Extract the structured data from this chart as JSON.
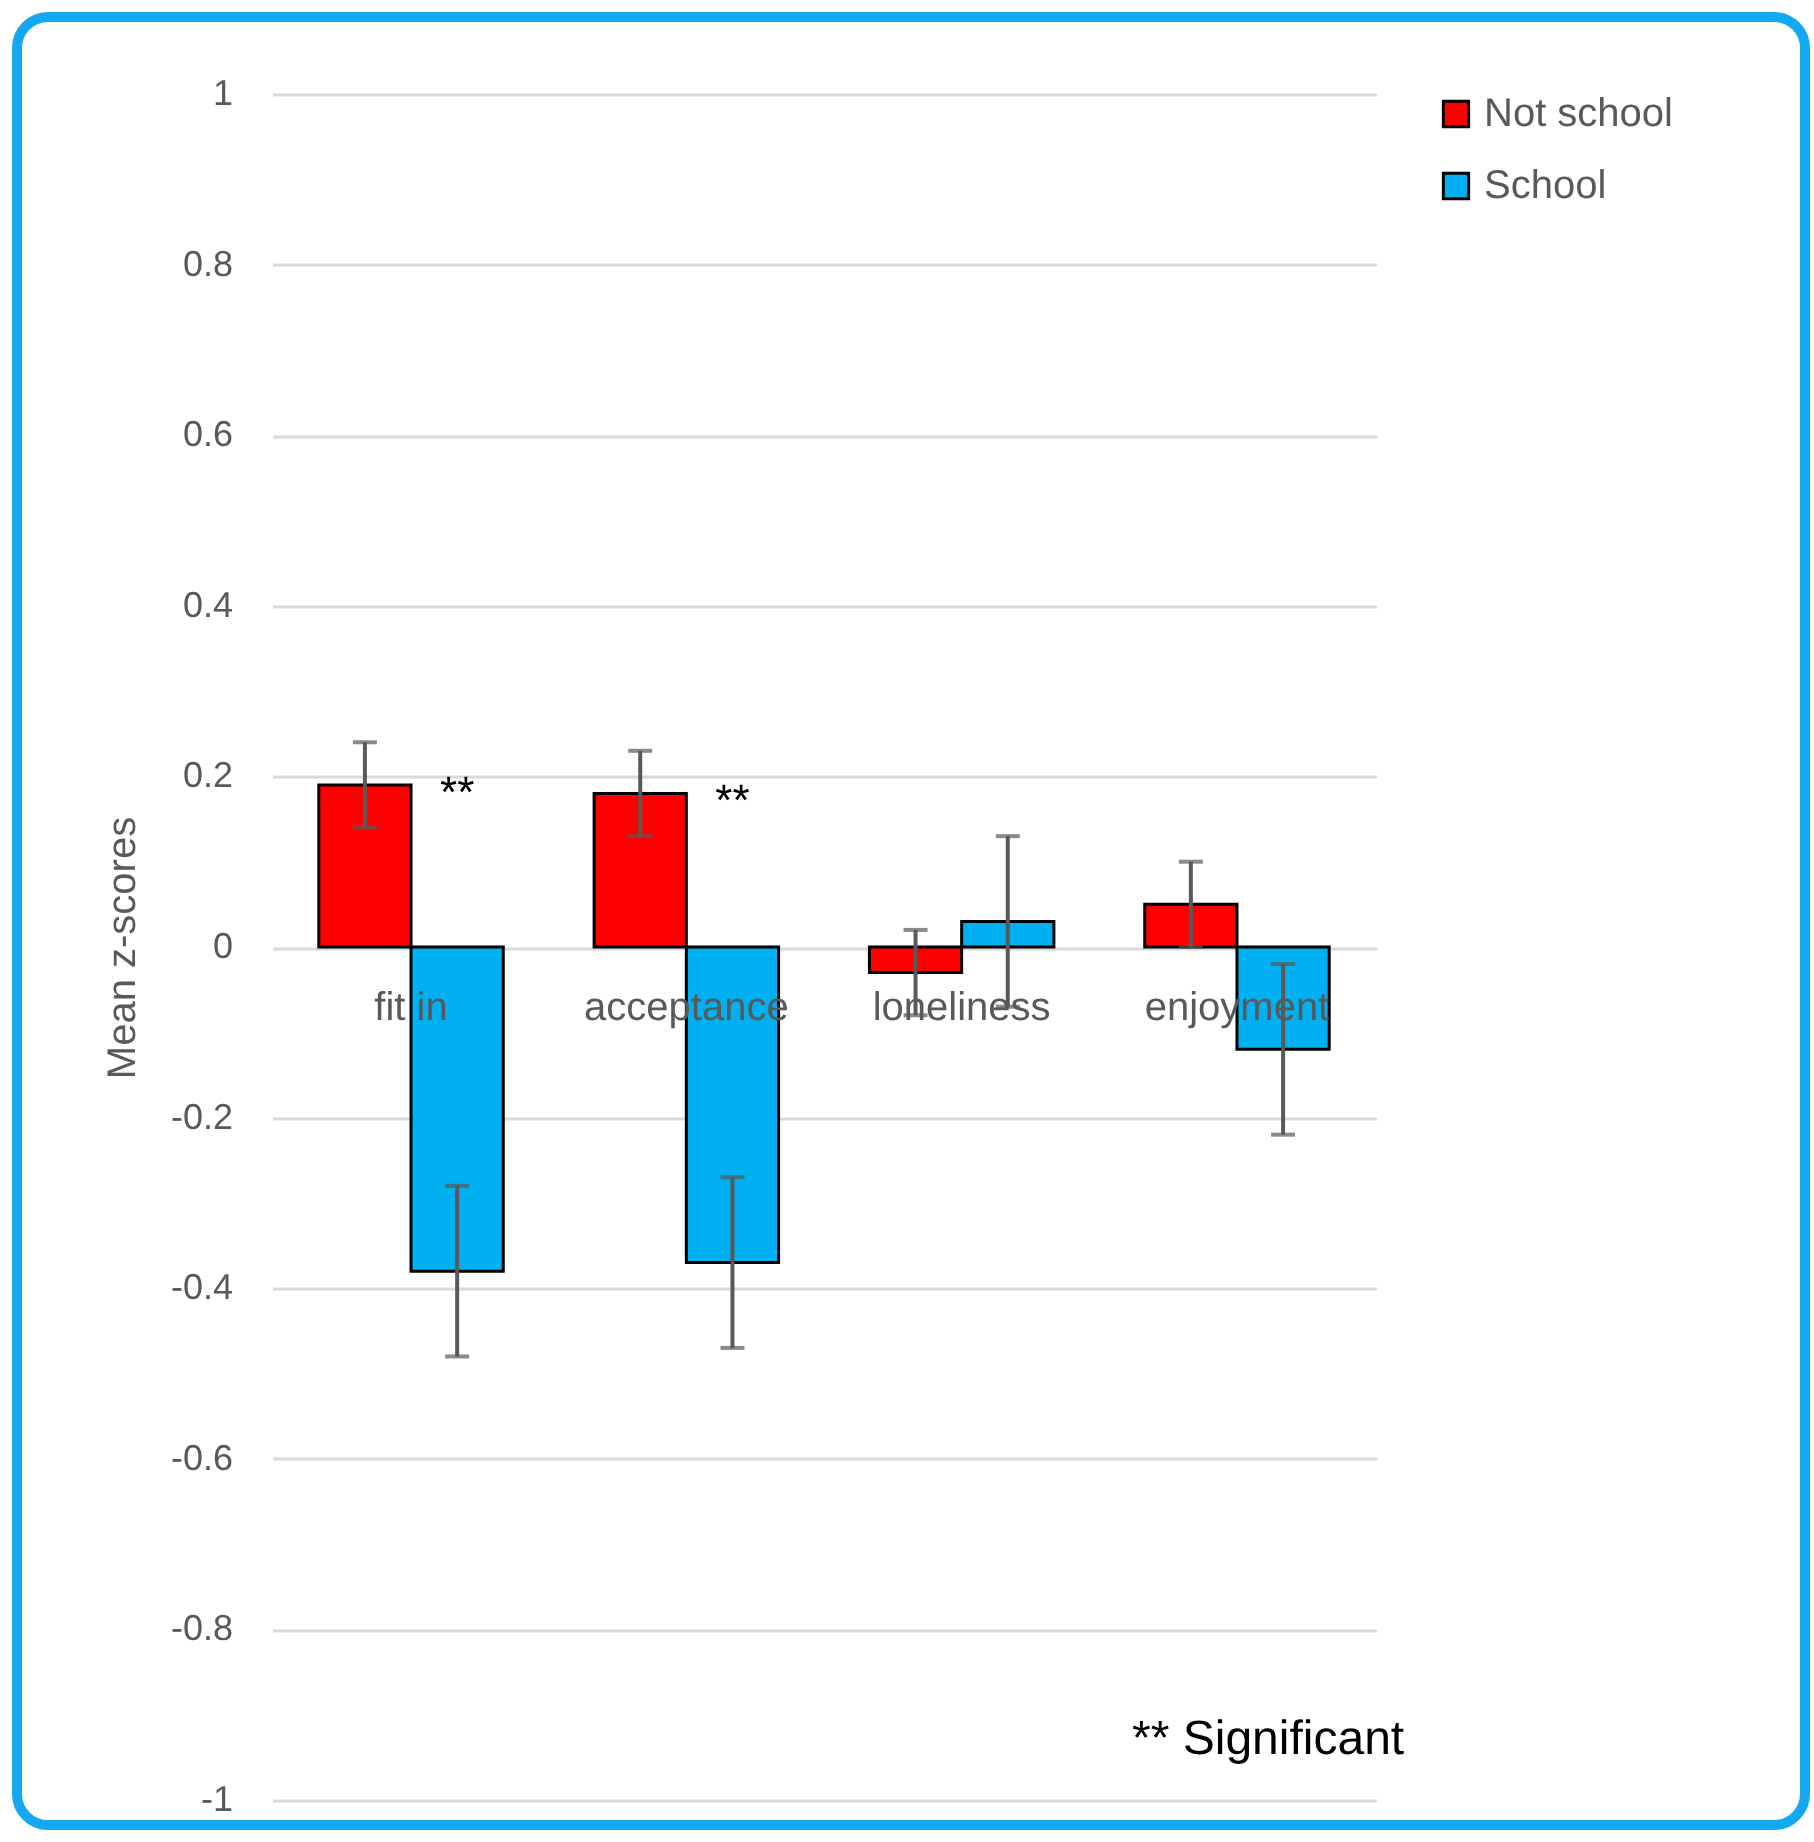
{
  "chart_data": {
    "type": "bar",
    "ylabel": "Mean z-scores",
    "categories": [
      "fit in",
      "acceptance",
      "loneliness",
      "enjoyment"
    ],
    "series": [
      {
        "name": "Not school",
        "color": "#ff0000",
        "values": [
          0.19,
          0.18,
          -0.03,
          0.05
        ],
        "errors": [
          0.05,
          0.05,
          0.05,
          0.05
        ]
      },
      {
        "name": "School",
        "color": "#00b0f0",
        "values": [
          -0.38,
          -0.37,
          0.03,
          -0.12
        ],
        "errors": [
          0.1,
          0.1,
          0.1,
          0.1
        ]
      }
    ],
    "ylim": [
      -1,
      1
    ],
    "yticks": [
      -1,
      -0.8,
      -0.6,
      -0.4,
      -0.2,
      0,
      0.2,
      0.4,
      0.6,
      0.8,
      1
    ],
    "grid": "y",
    "legend": "right",
    "annotations": [
      {
        "text": "**",
        "x": "fit in",
        "y": 0.19
      },
      {
        "text": "**",
        "x": "acceptance",
        "y": 0.18
      },
      "** Significant"
    ]
  }
}
